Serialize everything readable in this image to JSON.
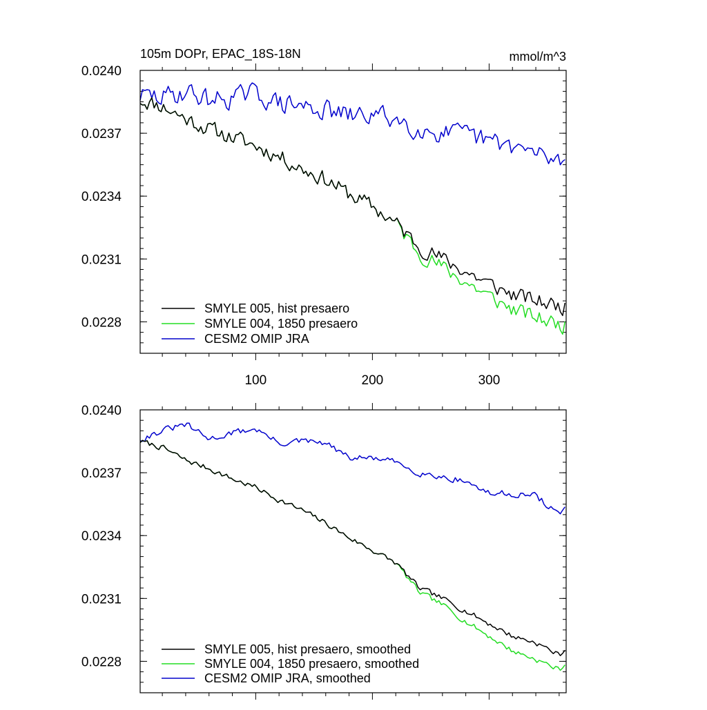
{
  "chart_data": [
    {
      "type": "line",
      "title": "105m DOPr, EPAC_18S-18N",
      "units": "mmol/m^3",
      "xlim": [
        1,
        366
      ],
      "ylim": [
        0.02265,
        0.024
      ],
      "yticks": [
        "0.0240",
        "0.0237",
        "0.0234",
        "0.0231",
        "0.0228"
      ],
      "xticks": [
        "100",
        "200",
        "300"
      ],
      "grid": false,
      "legend_position": "bottom-left",
      "series": [
        {
          "name": "SMYLE 005, hist presaero",
          "color": "#000000",
          "anchors": [
            [
              1,
              0.02386
            ],
            [
              20,
              0.02383
            ],
            [
              40,
              0.02377
            ],
            [
              60,
              0.02372
            ],
            [
              80,
              0.02368
            ],
            [
              100,
              0.02364
            ],
            [
              120,
              0.02359
            ],
            [
              140,
              0.02353
            ],
            [
              160,
              0.02348
            ],
            [
              180,
              0.02341
            ],
            [
              200,
              0.02335
            ],
            [
              220,
              0.02327
            ],
            [
              240,
              0.02316
            ],
            [
              260,
              0.0231
            ],
            [
              280,
              0.02304
            ],
            [
              300,
              0.02298
            ],
            [
              320,
              0.02293
            ],
            [
              340,
              0.0229
            ],
            [
              366,
              0.02287
            ]
          ],
          "noise": 3.5e-05,
          "seed": 11
        },
        {
          "name": "SMYLE 004, 1850 presaero",
          "color": "#22dd22",
          "anchors": [
            [
              1,
              0.02386
            ],
            [
              20,
              0.02383
            ],
            [
              40,
              0.02377
            ],
            [
              60,
              0.02372
            ],
            [
              80,
              0.02368
            ],
            [
              100,
              0.02364
            ],
            [
              120,
              0.02359
            ],
            [
              140,
              0.02353
            ],
            [
              160,
              0.02348
            ],
            [
              180,
              0.02341
            ],
            [
              200,
              0.02335
            ],
            [
              220,
              0.02327
            ],
            [
              240,
              0.02313
            ],
            [
              260,
              0.02306
            ],
            [
              280,
              0.02299
            ],
            [
              300,
              0.02292
            ],
            [
              320,
              0.02286
            ],
            [
              340,
              0.02282
            ],
            [
              366,
              0.02278
            ]
          ],
          "noise": 3.5e-05,
          "seed": 11
        },
        {
          "name": "CESM2 OMIP JRA",
          "color": "#0000cc",
          "anchors": [
            [
              1,
              0.02388
            ],
            [
              20,
              0.02387
            ],
            [
              40,
              0.0239
            ],
            [
              60,
              0.02386
            ],
            [
              80,
              0.02387
            ],
            [
              100,
              0.02389
            ],
            [
              120,
              0.02384
            ],
            [
              140,
              0.02383
            ],
            [
              160,
              0.02381
            ],
            [
              180,
              0.02378
            ],
            [
              200,
              0.02379
            ],
            [
              220,
              0.02377
            ],
            [
              240,
              0.02372
            ],
            [
              260,
              0.0237
            ],
            [
              280,
              0.02369
            ],
            [
              300,
              0.02366
            ],
            [
              320,
              0.02364
            ],
            [
              340,
              0.0236
            ],
            [
              366,
              0.02356
            ]
          ],
          "noise": 4.5e-05,
          "seed": 29
        }
      ]
    },
    {
      "type": "line",
      "title": "",
      "xlim": [
        1,
        366
      ],
      "ylim": [
        0.02265,
        0.024
      ],
      "yticks": [
        "0.0240",
        "0.0237",
        "0.0234",
        "0.0231",
        "0.0228"
      ],
      "xticks": [],
      "grid": false,
      "legend_position": "bottom-left",
      "series": [
        {
          "name": "SMYLE 005, hist presaero, smoothed",
          "color": "#000000",
          "anchors": [
            [
              1,
              0.02385
            ],
            [
              20,
              0.02382
            ],
            [
              40,
              0.02376
            ],
            [
              60,
              0.02372
            ],
            [
              80,
              0.02367
            ],
            [
              100,
              0.02363
            ],
            [
              120,
              0.02357
            ],
            [
              140,
              0.02352
            ],
            [
              160,
              0.02346
            ],
            [
              180,
              0.02339
            ],
            [
              200,
              0.02333
            ],
            [
              220,
              0.02327
            ],
            [
              240,
              0.02315
            ],
            [
              260,
              0.0231
            ],
            [
              280,
              0.02304
            ],
            [
              300,
              0.02298
            ],
            [
              320,
              0.02292
            ],
            [
              340,
              0.02289
            ],
            [
              360,
              0.02283
            ],
            [
              366,
              0.02286
            ]
          ],
          "noise": 1.2e-05,
          "seed": 7
        },
        {
          "name": "SMYLE 004, 1850 presaero, smoothed",
          "color": "#22dd22",
          "anchors": [
            [
              1,
              0.02385
            ],
            [
              20,
              0.02382
            ],
            [
              40,
              0.02376
            ],
            [
              60,
              0.02372
            ],
            [
              80,
              0.02367
            ],
            [
              100,
              0.02363
            ],
            [
              120,
              0.02357
            ],
            [
              140,
              0.02352
            ],
            [
              160,
              0.02346
            ],
            [
              180,
              0.02339
            ],
            [
              200,
              0.02333
            ],
            [
              220,
              0.02327
            ],
            [
              240,
              0.02313
            ],
            [
              260,
              0.02307
            ],
            [
              280,
              0.02299
            ],
            [
              300,
              0.02292
            ],
            [
              320,
              0.02285
            ],
            [
              340,
              0.02281
            ],
            [
              360,
              0.02276
            ],
            [
              366,
              0.02279
            ]
          ],
          "noise": 1.2e-05,
          "seed": 7
        },
        {
          "name": "CESM2 OMIP JRA, smoothed",
          "color": "#0000cc",
          "anchors": [
            [
              1,
              0.02386
            ],
            [
              20,
              0.0239
            ],
            [
              40,
              0.02393
            ],
            [
              60,
              0.02386
            ],
            [
              80,
              0.02389
            ],
            [
              100,
              0.02391
            ],
            [
              120,
              0.02384
            ],
            [
              140,
              0.02385
            ],
            [
              160,
              0.02384
            ],
            [
              180,
              0.02377
            ],
            [
              200,
              0.02377
            ],
            [
              220,
              0.02375
            ],
            [
              240,
              0.0237
            ],
            [
              260,
              0.02368
            ],
            [
              280,
              0.02366
            ],
            [
              300,
              0.0236
            ],
            [
              320,
              0.0236
            ],
            [
              340,
              0.02359
            ],
            [
              360,
              0.0235
            ],
            [
              366,
              0.02355
            ]
          ],
          "noise": 1.4e-05,
          "seed": 31
        }
      ]
    }
  ]
}
